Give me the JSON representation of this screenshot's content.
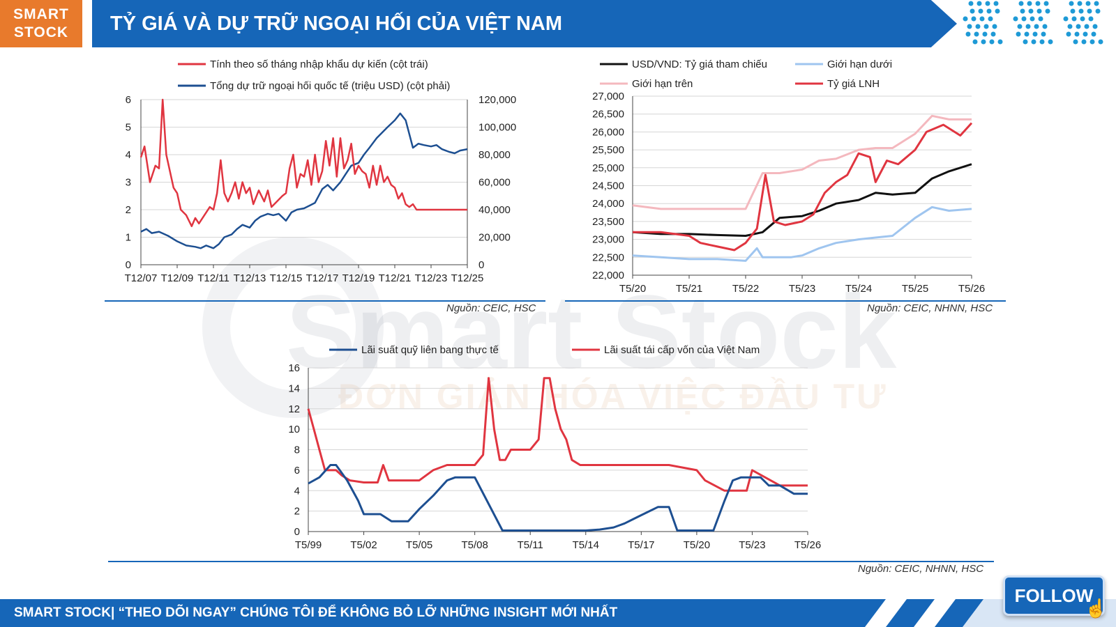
{
  "header": {
    "logo_line1": "SMART",
    "logo_line2": "STOCK",
    "title": "TỶ GIÁ VÀ DỰ TRỮ NGOẠI HỐI CỦA VIỆT NAM"
  },
  "watermark": {
    "brand": "Smart Stock",
    "tagline": "ĐƠN GIẢN HÓA VIỆC ĐẦU TƯ"
  },
  "footer": {
    "text": "SMART STOCK| “THEO DÕI NGAY” CHÚNG TÔI ĐỂ KHÔNG BỎ LỠ NHỮNG INSIGHT MỚI NHẤT",
    "follow_label": "FOLLOW"
  },
  "colors": {
    "red": "#e03540",
    "blue": "#1d4f91",
    "black": "#111111",
    "lightblue": "#9fc5ef",
    "pink": "#f4b8be",
    "brand_blue": "#1666b8",
    "orange": "#e87a2c"
  },
  "chart_data": [
    {
      "type": "line",
      "source": "Nguồn: CEIC, HSC",
      "x_ticks": [
        "T12/07",
        "T12/09",
        "T12/11",
        "T12/13",
        "T12/15",
        "T12/17",
        "T12/19",
        "T12/21",
        "T12/23",
        "T12/25"
      ],
      "ylim_left": [
        0,
        6
      ],
      "yticks_left": [
        "0",
        "1",
        "2",
        "3",
        "4",
        "5",
        "6"
      ],
      "ylim_right": [
        0,
        120000
      ],
      "yticks_right": [
        "0",
        "20,000",
        "40,000",
        "60,000",
        "80,000",
        "100,000",
        "120,000"
      ],
      "grid": true,
      "series": [
        {
          "name": "Tính theo số tháng nhập khẩu dự kiến (cột trái)",
          "axis": "left",
          "color": "#e03540",
          "x": [
            0,
            0.2,
            0.5,
            0.8,
            1.0,
            1.2,
            1.4,
            1.6,
            1.8,
            2.0,
            2.2,
            2.5,
            2.8,
            3.0,
            3.2,
            3.5,
            3.8,
            4.0,
            4.2,
            4.4,
            4.6,
            4.8,
            5.0,
            5.2,
            5.4,
            5.6,
            5.8,
            6.0,
            6.2,
            6.5,
            6.8,
            7.0,
            7.2,
            7.5,
            7.8,
            8.0,
            8.2,
            8.4,
            8.6,
            8.8,
            9.0,
            9.2,
            9.4,
            9.6,
            9.8,
            10.0,
            10.2,
            10.4,
            10.6,
            10.8,
            11.0,
            11.2,
            11.4,
            11.6,
            11.8,
            12.0,
            12.2,
            12.4,
            12.6,
            12.8,
            13.0,
            13.2,
            13.4,
            13.6,
            13.8,
            14.0,
            14.2,
            14.4,
            14.6,
            14.8,
            15.0,
            15.2,
            15.4,
            15.6,
            15.8,
            16.0,
            16.3,
            16.6,
            17.0,
            17.3,
            17.6,
            18.0
          ],
          "y": [
            3.9,
            4.3,
            3.0,
            3.6,
            3.5,
            6.0,
            4.0,
            3.4,
            2.8,
            2.6,
            2.0,
            1.8,
            1.4,
            1.7,
            1.5,
            1.8,
            2.1,
            2.0,
            2.6,
            3.8,
            2.6,
            2.3,
            2.6,
            3.0,
            2.4,
            3.0,
            2.6,
            2.8,
            2.2,
            2.7,
            2.3,
            2.7,
            2.1,
            2.3,
            2.5,
            2.6,
            3.5,
            4.0,
            2.8,
            3.3,
            3.2,
            3.8,
            2.9,
            4.0,
            3.0,
            3.4,
            4.5,
            3.6,
            4.6,
            3.2,
            4.6,
            3.5,
            3.8,
            4.4,
            3.3,
            3.6,
            3.4,
            3.3,
            2.8,
            3.6,
            2.9,
            3.6,
            3.0,
            3.2,
            2.9,
            2.8,
            2.4,
            2.6,
            2.2,
            2.1,
            2.2,
            2.0,
            2.0,
            2.0,
            2.0,
            2.0,
            2.0,
            2.0,
            2.0,
            2.0,
            2.0,
            2.0
          ]
        },
        {
          "name": "Tổng dự trữ ngoại hối quốc tế (triệu USD) (cột phải)",
          "axis": "right",
          "color": "#1d4f91",
          "x": [
            0,
            0.3,
            0.6,
            1.0,
            1.5,
            2.0,
            2.5,
            3.0,
            3.3,
            3.6,
            4.0,
            4.3,
            4.6,
            5.0,
            5.3,
            5.6,
            6.0,
            6.3,
            6.6,
            7.0,
            7.3,
            7.6,
            8.0,
            8.3,
            8.6,
            9.0,
            9.3,
            9.6,
            10.0,
            10.3,
            10.6,
            11.0,
            11.3,
            11.6,
            12.0,
            12.3,
            12.6,
            13.0,
            13.3,
            13.6,
            14.0,
            14.3,
            14.6,
            15.0,
            15.3,
            15.6,
            16.0,
            16.3,
            16.6,
            17.0,
            17.3,
            17.6,
            18.0
          ],
          "y": [
            24000,
            26000,
            23000,
            24000,
            21000,
            17000,
            14000,
            13000,
            12000,
            14000,
            12000,
            15000,
            20000,
            22000,
            26000,
            29000,
            27000,
            32000,
            35000,
            37000,
            36000,
            37000,
            32000,
            38000,
            40000,
            41000,
            43000,
            45000,
            55000,
            58000,
            54000,
            60000,
            66000,
            72000,
            74000,
            80000,
            85000,
            92000,
            96000,
            100000,
            105000,
            110000,
            105000,
            85000,
            88000,
            87000,
            86000,
            87000,
            84000,
            82000,
            81000,
            83000,
            84000
          ]
        }
      ]
    },
    {
      "type": "line",
      "source": "Nguồn: CEIC, NHNN, HSC",
      "x_ticks": [
        "T5/20",
        "T5/21",
        "T5/22",
        "T5/23",
        "T5/24",
        "T5/25",
        "T5/26"
      ],
      "ylim": [
        22000,
        27000
      ],
      "yticks": [
        "22,000",
        "22,500",
        "23,000",
        "23,500",
        "24,000",
        "24,500",
        "25,000",
        "25,500",
        "26,000",
        "26,500",
        "27,000"
      ],
      "grid": true,
      "series": [
        {
          "name": "USD/VND: Tỷ giá tham chiếu",
          "color": "#111111",
          "x": [
            0,
            0.5,
            1.0,
            1.5,
            2.0,
            2.3,
            2.6,
            3.0,
            3.3,
            3.6,
            4.0,
            4.3,
            4.6,
            5.0,
            5.3,
            5.6,
            6.0
          ],
          "y": [
            23200,
            23150,
            23150,
            23120,
            23100,
            23200,
            23600,
            23650,
            23800,
            24000,
            24100,
            24300,
            24250,
            24300,
            24700,
            24900,
            25100
          ]
        },
        {
          "name": "Giới hạn dưới",
          "color": "#9fc5ef",
          "x": [
            0,
            0.5,
            1.0,
            1.5,
            2.0,
            2.2,
            2.3,
            2.5,
            2.8,
            3.0,
            3.3,
            3.6,
            4.0,
            4.3,
            4.6,
            5.0,
            5.3,
            5.6,
            6.0
          ],
          "y": [
            22550,
            22500,
            22450,
            22450,
            22400,
            22750,
            22500,
            22500,
            22500,
            22550,
            22750,
            22900,
            23000,
            23050,
            23100,
            23600,
            23900,
            23800,
            23850
          ]
        },
        {
          "name": "Giới hạn trên",
          "color": "#f4b8be",
          "x": [
            0,
            0.5,
            1.0,
            1.5,
            2.0,
            2.3,
            2.6,
            3.0,
            3.3,
            3.6,
            4.0,
            4.3,
            4.6,
            5.0,
            5.3,
            5.6,
            6.0
          ],
          "y": [
            23950,
            23850,
            23850,
            23850,
            23850,
            24850,
            24850,
            24950,
            25200,
            25250,
            25500,
            25550,
            25550,
            25950,
            26450,
            26350,
            26350
          ]
        },
        {
          "name": "Tỷ giá LNH",
          "color": "#e03540",
          "x": [
            0,
            0.5,
            1.0,
            1.2,
            1.5,
            1.8,
            2.0,
            2.2,
            2.35,
            2.5,
            2.7,
            3.0,
            3.2,
            3.4,
            3.6,
            3.8,
            4.0,
            4.2,
            4.3,
            4.5,
            4.7,
            5.0,
            5.2,
            5.5,
            5.8,
            6.0
          ],
          "y": [
            23200,
            23200,
            23100,
            22900,
            22800,
            22700,
            22900,
            23300,
            24800,
            23500,
            23400,
            23500,
            23700,
            24300,
            24600,
            24800,
            25400,
            25300,
            24600,
            25200,
            25100,
            25500,
            26000,
            26200,
            25900,
            26250
          ]
        }
      ]
    },
    {
      "type": "line",
      "source": "Nguồn: CEIC, NHNN, HSC",
      "x_ticks": [
        "T5/99",
        "T5/02",
        "T5/05",
        "T5/08",
        "T5/11",
        "T5/14",
        "T5/17",
        "T5/20",
        "T5/23",
        "T5/26"
      ],
      "ylim": [
        0,
        16
      ],
      "yticks": [
        "0",
        "2",
        "4",
        "6",
        "8",
        "10",
        "12",
        "14",
        "16"
      ],
      "grid": true,
      "series": [
        {
          "name": "Lãi suất quỹ liên bang thực tế",
          "color": "#1d4f91",
          "x": [
            0,
            0.4,
            0.8,
            1.0,
            1.4,
            1.8,
            2.0,
            2.6,
            3.0,
            3.6,
            4.0,
            4.5,
            5.0,
            5.3,
            5.5,
            6.0,
            7.0,
            7.5,
            8.0,
            8.5,
            9.0,
            9.5,
            10.0,
            10.5,
            11.0,
            11.4,
            11.7,
            12.0,
            12.3,
            12.6,
            13.0,
            13.3,
            13.6,
            14.0,
            14.3,
            14.6,
            15.0,
            15.3,
            15.6,
            16.0,
            16.3,
            16.6,
            17.0,
            17.5,
            18.0
          ],
          "y": [
            4.7,
            5.3,
            6.5,
            6.5,
            5.0,
            3.0,
            1.7,
            1.7,
            1.0,
            1.0,
            2.2,
            3.5,
            5.0,
            5.3,
            5.3,
            5.3,
            0.1,
            0.1,
            0.1,
            0.1,
            0.1,
            0.1,
            0.1,
            0.2,
            0.4,
            0.8,
            1.2,
            1.6,
            2.0,
            2.4,
            2.4,
            0.1,
            0.1,
            0.1,
            0.1,
            0.1,
            3.0,
            5.0,
            5.3,
            5.3,
            5.3,
            4.5,
            4.5,
            3.7,
            3.7
          ]
        },
        {
          "name": "Lãi suất tái cấp vốn của Việt Nam",
          "color": "#e03540",
          "x": [
            0,
            0.2,
            0.4,
            0.6,
            0.8,
            1.0,
            1.2,
            1.5,
            2.0,
            2.5,
            2.7,
            2.9,
            3.2,
            3.5,
            4.0,
            4.5,
            5.0,
            5.5,
            6.0,
            6.3,
            6.5,
            6.7,
            6.9,
            7.1,
            7.3,
            7.5,
            8.0,
            8.3,
            8.5,
            8.7,
            8.9,
            9.1,
            9.3,
            9.5,
            9.8,
            10.0,
            11.0,
            12.0,
            13.0,
            14.0,
            14.3,
            15.0,
            15.5,
            15.8,
            16.0,
            17.0,
            18.0
          ],
          "y": [
            12,
            10,
            8,
            6,
            6,
            6,
            5.5,
            5,
            4.8,
            4.8,
            6.5,
            5,
            5,
            5,
            5,
            6,
            6.5,
            6.5,
            6.5,
            7.5,
            15,
            10,
            7,
            7,
            8,
            8,
            8,
            9,
            15,
            15,
            12,
            10,
            9,
            7,
            6.5,
            6.5,
            6.5,
            6.5,
            6.5,
            6,
            5,
            4,
            4,
            4,
            6,
            4.5,
            4.5
          ]
        }
      ]
    }
  ]
}
